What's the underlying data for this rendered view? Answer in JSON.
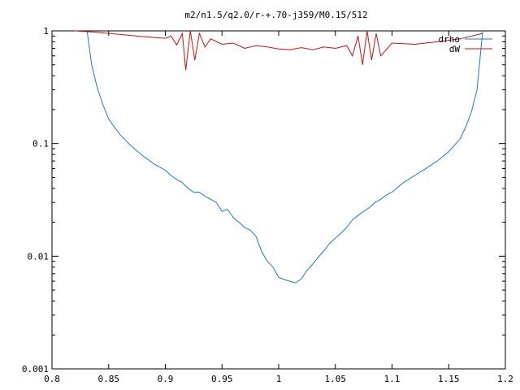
{
  "chart_data": {
    "type": "line",
    "title": "m2/n1.5/q2.0/r-+.70-j359/M0.15/512",
    "xlabel": "",
    "ylabel": "",
    "xlim": [
      0.8,
      1.2
    ],
    "ylim": [
      0.001,
      1
    ],
    "yscale": "log",
    "grid": false,
    "legend_position": "top-right",
    "x_ticks": [
      "0.8",
      "0.85",
      "0.9",
      "0.95",
      "1",
      "1.05",
      "1.1",
      "1.15",
      "1.2"
    ],
    "y_ticks": [
      "0.001",
      "0.01",
      "0.1",
      "1"
    ],
    "series": [
      {
        "name": "drho",
        "color": "#1f77d0",
        "x": [
          0.831,
          0.835,
          0.84,
          0.845,
          0.85,
          0.86,
          0.87,
          0.88,
          0.89,
          0.9,
          0.905,
          0.91,
          0.915,
          0.92,
          0.925,
          0.93,
          0.935,
          0.94,
          0.945,
          0.95,
          0.955,
          0.96,
          0.965,
          0.97,
          0.975,
          0.98,
          0.985,
          0.99,
          0.995,
          1.0,
          1.005,
          1.01,
          1.015,
          1.02,
          1.025,
          1.03,
          1.035,
          1.04,
          1.045,
          1.05,
          1.055,
          1.06,
          1.065,
          1.07,
          1.075,
          1.08,
          1.085,
          1.09,
          1.095,
          1.1,
          1.11,
          1.12,
          1.13,
          1.14,
          1.15,
          1.16,
          1.165,
          1.17,
          1.175,
          1.18
        ],
        "y": [
          1.0,
          0.5,
          0.31,
          0.22,
          0.165,
          0.12,
          0.095,
          0.078,
          0.066,
          0.058,
          0.052,
          0.048,
          0.045,
          0.04,
          0.037,
          0.037,
          0.034,
          0.032,
          0.03,
          0.025,
          0.026,
          0.022,
          0.02,
          0.018,
          0.017,
          0.015,
          0.011,
          0.009,
          0.008,
          0.0065,
          0.0062,
          0.006,
          0.0058,
          0.0063,
          0.0075,
          0.0085,
          0.0098,
          0.0112,
          0.013,
          0.0145,
          0.016,
          0.018,
          0.021,
          0.023,
          0.025,
          0.027,
          0.03,
          0.032,
          0.035,
          0.037,
          0.045,
          0.052,
          0.06,
          0.07,
          0.085,
          0.11,
          0.14,
          0.19,
          0.3,
          1.0
        ]
      },
      {
        "name": "dW",
        "color": "#cc1111",
        "x": [
          0.82,
          0.84,
          0.86,
          0.88,
          0.9,
          0.905,
          0.91,
          0.915,
          0.918,
          0.922,
          0.926,
          0.93,
          0.935,
          0.94,
          0.95,
          0.96,
          0.97,
          0.98,
          0.99,
          1.0,
          1.01,
          1.02,
          1.03,
          1.04,
          1.05,
          1.06,
          1.065,
          1.07,
          1.074,
          1.078,
          1.082,
          1.086,
          1.09,
          1.1,
          1.12,
          1.14,
          1.16,
          1.18
        ],
        "y": [
          1.0,
          0.97,
          0.93,
          0.89,
          0.86,
          0.9,
          0.75,
          0.95,
          0.45,
          1.0,
          0.55,
          0.95,
          0.72,
          0.85,
          0.76,
          0.78,
          0.7,
          0.74,
          0.72,
          0.69,
          0.68,
          0.71,
          0.68,
          0.72,
          0.7,
          0.74,
          0.6,
          0.9,
          0.5,
          1.0,
          0.55,
          0.95,
          0.6,
          0.78,
          0.76,
          0.8,
          0.85,
          0.95
        ]
      }
    ]
  }
}
